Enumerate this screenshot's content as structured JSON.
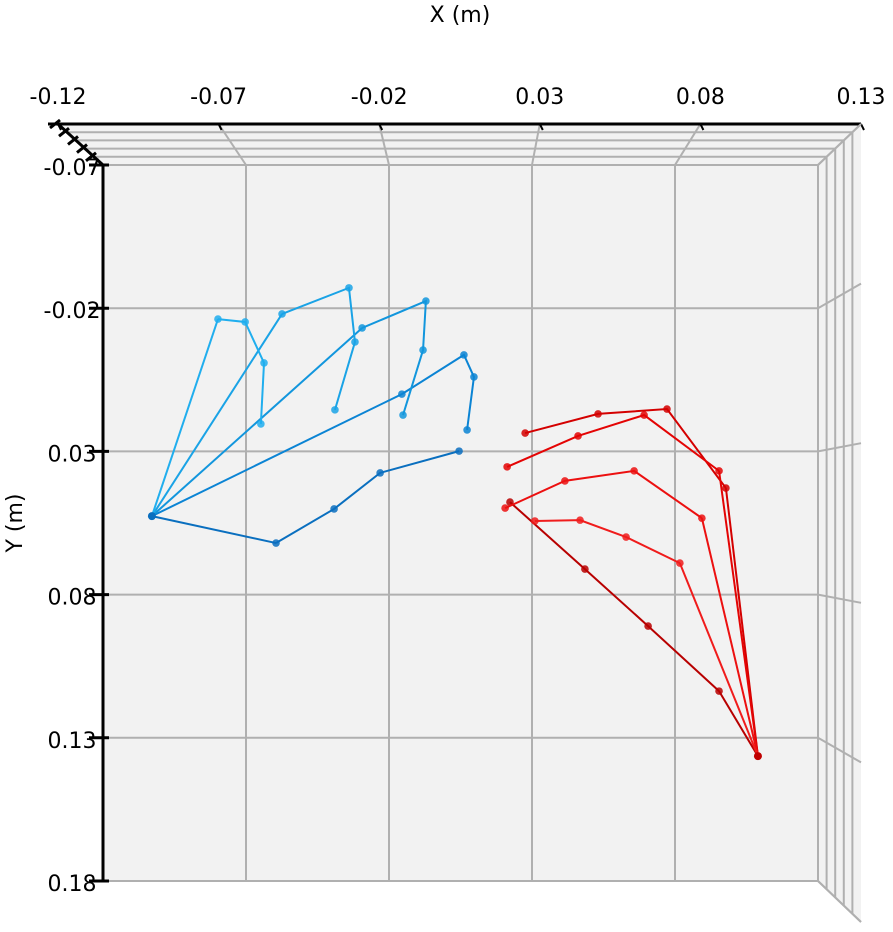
{
  "chart_data": {
    "type": "skeleton",
    "xlabel": "X (m)",
    "ylabel": "Y (m)",
    "xlim": [
      -0.12,
      0.13
    ],
    "ylim": [
      -0.07,
      0.18
    ],
    "xticks": [
      -0.12,
      -0.07,
      -0.02,
      0.03,
      0.08,
      0.13
    ],
    "yticks": [
      -0.07,
      -0.02,
      0.03,
      0.08,
      0.13,
      0.18
    ],
    "grid": true,
    "hands": [
      {
        "color": "#0a6fbf",
        "wrist": {
          "x": -0.1029,
          "y": 0.0526
        },
        "fingers": [
          {
            "color": "#0a6fbf",
            "x": [
              -0.0595,
              -0.0392,
              -0.0231,
              0.0045
            ],
            "y": [
              0.062,
              0.0501,
              0.0375,
              0.0299
            ]
          },
          {
            "color": "#0b84d4",
            "x": [
              -0.0155,
              0.0062,
              0.0097,
              0.0073
            ],
            "y": [
              0.01,
              -0.0037,
              0.004,
              0.0225
            ]
          },
          {
            "color": "#1296dd",
            "x": [
              -0.0294,
              -0.0071,
              -0.0081,
              -0.0151
            ],
            "y": [
              -0.0131,
              -0.0225,
              -0.0054,
              0.0173
            ]
          },
          {
            "color": "#1aa3e6",
            "x": [
              -0.0574,
              -0.034,
              -0.0319,
              -0.0389
            ],
            "y": [
              -0.018,
              -0.0271,
              -0.0082,
              0.0155
            ]
          },
          {
            "color": "#20aeee",
            "x": [
              -0.0798,
              -0.0703,
              -0.0637,
              -0.0648
            ],
            "y": [
              -0.0162,
              -0.0152,
              -0.0009,
              0.0204
            ]
          }
        ]
      },
      {
        "color": "#c00000",
        "wrist": {
          "x": 0.109,
          "y": 0.1364
        },
        "fingers": [
          {
            "color": "#b80000",
            "x": [
              0.0954,
              0.0706,
              0.0485,
              0.0223
            ],
            "y": [
              0.1137,
              0.091,
              0.0711,
              0.0477
            ]
          },
          {
            "color": "#d40000",
            "x": [
              0.0978,
              0.0772,
              0.0531,
              0.0276
            ],
            "y": [
              0.0428,
              0.0152,
              0.0169,
              0.0236
            ]
          },
          {
            "color": "#e40404",
            "x": [
              0.0954,
              0.0692,
              0.0461,
              0.0213
            ],
            "y": [
              0.0368,
              0.0173,
              0.0246,
              0.0354
            ]
          },
          {
            "color": "#ec1010",
            "x": [
              0.0894,
              0.0657,
              0.0415,
              0.0206
            ],
            "y": [
              0.0533,
              0.0368,
              0.0403,
              0.0498
            ]
          },
          {
            "color": "#f01c1c",
            "x": [
              0.0817,
              0.0629,
              0.0468,
              0.031
            ],
            "y": [
              0.069,
              0.0599,
              0.054,
              0.0543
            ]
          }
        ]
      }
    ]
  }
}
